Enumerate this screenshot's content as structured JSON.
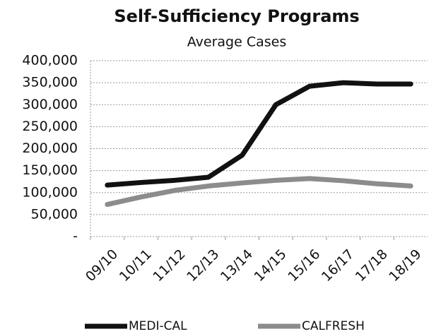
{
  "chart_data": {
    "type": "line",
    "title": "Self-Sufficiency Programs",
    "subtitle": "Average Cases",
    "categories": [
      "09/10",
      "10/11",
      "11/12",
      "12/13",
      "13/14",
      "14/15",
      "15/16",
      "16/17",
      "17/18",
      "18/19"
    ],
    "series": [
      {
        "name": "MEDI-CAL",
        "color": "#111111",
        "values": [
          117000,
          123000,
          128000,
          135000,
          185000,
          300000,
          342000,
          350000,
          347000,
          347000
        ]
      },
      {
        "name": "CALFRESH",
        "color": "#8c8c8c",
        "values": [
          73000,
          90000,
          105000,
          115000,
          122000,
          128000,
          132000,
          127000,
          120000,
          115000
        ]
      }
    ],
    "ylim": [
      0,
      400000
    ],
    "yticks": [
      {
        "value": 0,
        "label": "-"
      },
      {
        "value": 50000,
        "label": "50,000"
      },
      {
        "value": 100000,
        "label": "100,000"
      },
      {
        "value": 150000,
        "label": "150,000"
      },
      {
        "value": 200000,
        "label": "200,000"
      },
      {
        "value": 250000,
        "label": "250,000"
      },
      {
        "value": 300000,
        "label": "300,000"
      },
      {
        "value": 350000,
        "label": "350,000"
      },
      {
        "value": 400000,
        "label": "400,000"
      }
    ],
    "grid": true,
    "legend": "bottom"
  }
}
